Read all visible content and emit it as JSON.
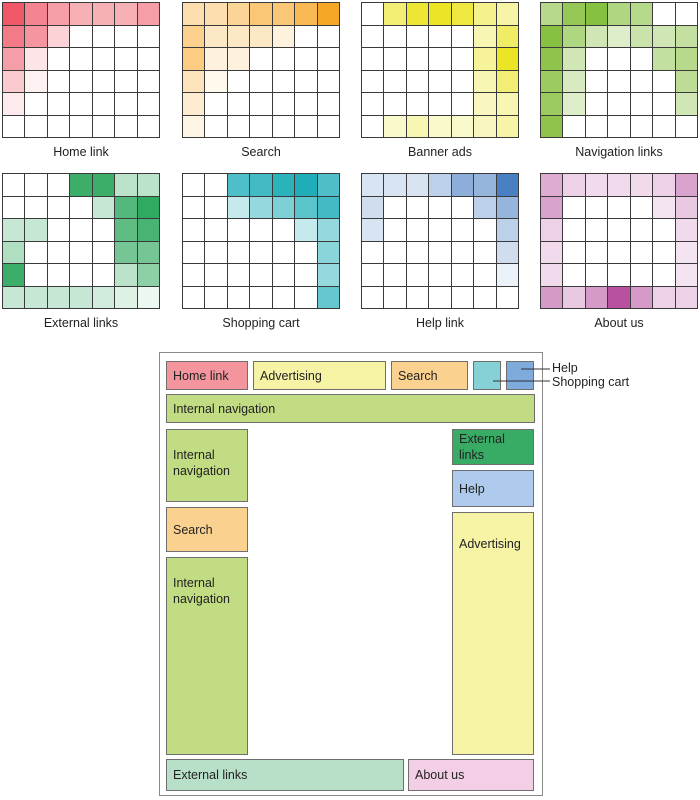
{
  "heatmaps": [
    {
      "caption": "Home link",
      "color": "#ef4f5f",
      "grid": [
        [
          0.95,
          0.7,
          0.55,
          0.45,
          0.45,
          0.45,
          0.55
        ],
        [
          0.75,
          0.6,
          0.25,
          0,
          0,
          0,
          0
        ],
        [
          0.55,
          0.15,
          0,
          0,
          0,
          0,
          0
        ],
        [
          0.3,
          0.08,
          0,
          0,
          0,
          0,
          0
        ],
        [
          0.12,
          0,
          0,
          0,
          0,
          0,
          0
        ],
        [
          0,
          0,
          0,
          0,
          0,
          0,
          0
        ]
      ]
    },
    {
      "caption": "Search",
      "color": "#f7a21b",
      "grid": [
        [
          0.35,
          0.35,
          0.45,
          0.6,
          0.6,
          0.75,
          0.95
        ],
        [
          0.5,
          0.25,
          0.25,
          0.25,
          0.15,
          0,
          0
        ],
        [
          0.55,
          0.15,
          0.15,
          0,
          0,
          0,
          0
        ],
        [
          0.3,
          0.08,
          0,
          0,
          0,
          0,
          0
        ],
        [
          0.2,
          0,
          0,
          0,
          0,
          0,
          0
        ],
        [
          0.12,
          0,
          0,
          0,
          0,
          0,
          0
        ]
      ]
    },
    {
      "caption": "Banner ads",
      "color": "#e8e000",
      "grid": [
        [
          0,
          0.55,
          0.8,
          0.85,
          0.75,
          0.45,
          0.35
        ],
        [
          0,
          0,
          0,
          0,
          0,
          0.3,
          0.6
        ],
        [
          0,
          0,
          0,
          0,
          0,
          0.4,
          0.85
        ],
        [
          0,
          0,
          0,
          0,
          0,
          0.3,
          0.55
        ],
        [
          0,
          0,
          0,
          0,
          0,
          0.25,
          0.3
        ],
        [
          0,
          0.2,
          0.3,
          0.2,
          0.2,
          0.25,
          0.35
        ]
      ]
    },
    {
      "caption": "Navigation links",
      "color": "#7aba2c",
      "grid": [
        [
          0.55,
          0.8,
          0.9,
          0.6,
          0.55,
          0,
          0
        ],
        [
          0.9,
          0.6,
          0.35,
          0.25,
          0.4,
          0.35,
          0.45
        ],
        [
          0.85,
          0.35,
          0,
          0,
          0,
          0.45,
          0.55
        ],
        [
          0.75,
          0.3,
          0,
          0,
          0,
          0,
          0.5
        ],
        [
          0.75,
          0.25,
          0,
          0,
          0,
          0,
          0.35
        ],
        [
          0.85,
          0,
          0,
          0,
          0,
          0,
          0
        ]
      ]
    },
    {
      "caption": "External links",
      "color": "#1aa04f",
      "grid": [
        [
          0,
          0,
          0,
          0.85,
          0.85,
          0.3,
          0.3
        ],
        [
          0,
          0,
          0,
          0,
          0.25,
          0.75,
          0.9
        ],
        [
          0.25,
          0.25,
          0,
          0,
          0,
          0.7,
          0.8
        ],
        [
          0.35,
          0,
          0,
          0,
          0,
          0.6,
          0.6
        ],
        [
          0.85,
          0,
          0,
          0,
          0,
          0.3,
          0.5
        ],
        [
          0.25,
          0.25,
          0.25,
          0.25,
          0.2,
          0.15,
          0.08
        ]
      ]
    },
    {
      "caption": "Shopping cart",
      "color": "#13aab5",
      "grid": [
        [
          0,
          0,
          0.75,
          0.8,
          0.9,
          0.95,
          0.75
        ],
        [
          0,
          0,
          0.25,
          0.45,
          0.55,
          0.7,
          0.8
        ],
        [
          0,
          0,
          0,
          0,
          0,
          0.25,
          0.45
        ],
        [
          0,
          0,
          0,
          0,
          0,
          0,
          0.5
        ],
        [
          0,
          0,
          0,
          0,
          0,
          0,
          0.45
        ],
        [
          0,
          0,
          0,
          0,
          0,
          0,
          0.65
        ]
      ]
    },
    {
      "caption": "Help link",
      "color": "#3f78c0",
      "grid": [
        [
          0.2,
          0.2,
          0.2,
          0.35,
          0.6,
          0.55,
          0.95
        ],
        [
          0.25,
          0,
          0,
          0,
          0,
          0.35,
          0.55
        ],
        [
          0.2,
          0,
          0,
          0,
          0,
          0,
          0.35
        ],
        [
          0,
          0,
          0,
          0,
          0,
          0,
          0.25
        ],
        [
          0,
          0,
          0,
          0,
          0,
          0,
          0.1
        ],
        [
          0,
          0,
          0,
          0,
          0,
          0,
          0
        ]
      ]
    },
    {
      "caption": "About us",
      "color": "#b5479b",
      "grid": [
        [
          0.45,
          0.25,
          0.2,
          0.2,
          0.2,
          0.25,
          0.5
        ],
        [
          0.5,
          0,
          0,
          0,
          0,
          0.15,
          0.3
        ],
        [
          0.25,
          0,
          0,
          0,
          0,
          0,
          0.2
        ],
        [
          0.2,
          0,
          0,
          0,
          0,
          0,
          0.15
        ],
        [
          0.2,
          0,
          0,
          0,
          0,
          0,
          0.15
        ],
        [
          0.55,
          0.3,
          0.55,
          0.95,
          0.55,
          0.25,
          0.25
        ]
      ]
    }
  ],
  "layout": {
    "home_link": {
      "label": "Home link",
      "color": "#f4959d"
    },
    "advertising_top": {
      "label": "Advertising",
      "color": "#f6f3a4"
    },
    "search_top": {
      "label": "Search",
      "color": "#fbd18f"
    },
    "cart_box": {
      "color": "#86d1d6"
    },
    "help_box": {
      "color": "#7faadc"
    },
    "internal_nav_bar": {
      "label": "Internal navigation",
      "color": "#c1dc82"
    },
    "internal_nav_left1": {
      "label": "Internal navigation",
      "color": "#c1dc82"
    },
    "search_left": {
      "label": "Search",
      "color": "#fbd18f"
    },
    "internal_nav_left2": {
      "label": "Internal navigation",
      "color": "#c1dc82"
    },
    "external_links_right": {
      "label": "External links",
      "color": "#38ab65"
    },
    "help_right": {
      "label": "Help",
      "color": "#aecbee"
    },
    "advertising_right": {
      "label": "Advertising",
      "color": "#f6f3a4"
    },
    "external_links_bottom": {
      "label": "External links",
      "color": "#b8e0c8"
    },
    "about_us_bottom": {
      "label": "About us",
      "color": "#f2cfe5"
    },
    "callout_help": "Help",
    "callout_cart": "Shopping cart"
  }
}
